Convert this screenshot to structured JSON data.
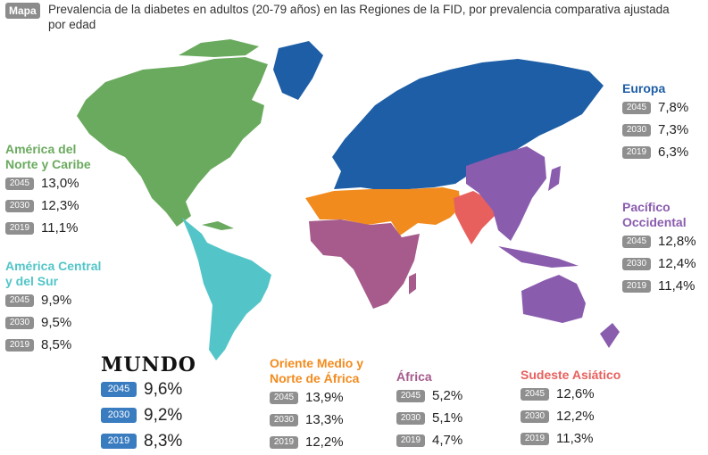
{
  "header": {
    "tag": "Mapa",
    "title": "Prevalencia de la diabetes en adultos (20-79 años) en las Regiones de la FID, por prevalencia comparativa ajustada por edad"
  },
  "colors": {
    "north_america": "#6aaa5e",
    "south_america": "#53c5c8",
    "europe": "#1d5ea6",
    "mena": "#f28b1e",
    "africa": "#a65b8c",
    "se_asia": "#e8605e",
    "w_pacific": "#8a5cae",
    "world_badge": "#3a7cc0",
    "year_badge": "#8f8f8f"
  },
  "regions": {
    "north_america": {
      "name_line1": "América del",
      "name_line2": "Norte y Caribe",
      "rows": [
        {
          "year": "2045",
          "value": "13,0%"
        },
        {
          "year": "2030",
          "value": "12,3%"
        },
        {
          "year": "2019",
          "value": "11,1%"
        }
      ]
    },
    "south_america": {
      "name_line1": "América Central",
      "name_line2": "y del Sur",
      "rows": [
        {
          "year": "2045",
          "value": "9,9%"
        },
        {
          "year": "2030",
          "value": "9,5%"
        },
        {
          "year": "2019",
          "value": "8,5%"
        }
      ]
    },
    "europe": {
      "name_line1": "Europa",
      "name_line2": "",
      "rows": [
        {
          "year": "2045",
          "value": "7,8%"
        },
        {
          "year": "2030",
          "value": "7,3%"
        },
        {
          "year": "2019",
          "value": "6,3%"
        }
      ]
    },
    "w_pacific": {
      "name_line1": "Pacífico",
      "name_line2": "Occidental",
      "rows": [
        {
          "year": "2045",
          "value": "12,8%"
        },
        {
          "year": "2030",
          "value": "12,4%"
        },
        {
          "year": "2019",
          "value": "11,4%"
        }
      ]
    },
    "mena": {
      "name_line1": "Oriente Medio y",
      "name_line2": "Norte de África",
      "rows": [
        {
          "year": "2045",
          "value": "13,9%"
        },
        {
          "year": "2030",
          "value": "13,3%"
        },
        {
          "year": "2019",
          "value": "12,2%"
        }
      ]
    },
    "africa": {
      "name_line1": "África",
      "name_line2": "",
      "rows": [
        {
          "year": "2045",
          "value": "5,2%"
        },
        {
          "year": "2030",
          "value": "5,1%"
        },
        {
          "year": "2019",
          "value": "4,7%"
        }
      ]
    },
    "se_asia": {
      "name_line1": "Sudeste Asiático",
      "name_line2": "",
      "rows": [
        {
          "year": "2045",
          "value": "12,6%"
        },
        {
          "year": "2030",
          "value": "12,2%"
        },
        {
          "year": "2019",
          "value": "11,3%"
        }
      ]
    },
    "world": {
      "name_line1": "MUNDO",
      "name_line2": "",
      "rows": [
        {
          "year": "2045",
          "value": "9,6%"
        },
        {
          "year": "2030",
          "value": "9,2%"
        },
        {
          "year": "2019",
          "value": "8,3%"
        }
      ]
    }
  }
}
